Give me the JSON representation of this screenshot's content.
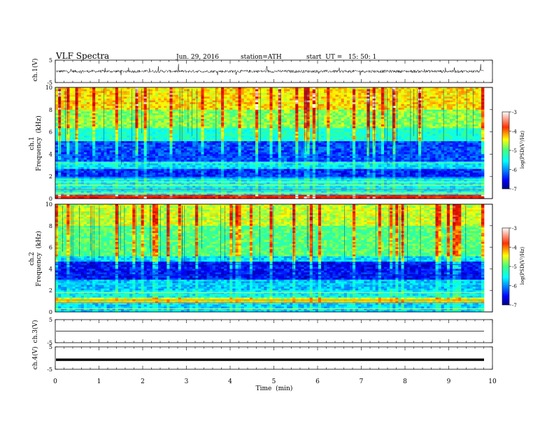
{
  "header": {
    "title": "VLF Spectra",
    "date": "Jun. 29, 2016",
    "station": "station=ATH",
    "start": "start  UT =   15: 50: 1"
  },
  "colorbar": {
    "label": "log(PSD(V²/Hz)",
    "ticks": [
      "-3",
      "-4",
      "-5",
      "-6",
      "-7"
    ]
  },
  "chart_data": [
    {
      "type": "line",
      "name": "ch1-waveform",
      "ylabel": "ch.1(V)",
      "ylim": [
        -5,
        5
      ],
      "yticks": [
        5,
        -5
      ],
      "description_values": {
        "baseline": 0,
        "noise_amplitude": 1.2,
        "spike_amplitude": 2.5
      }
    },
    {
      "type": "heatmap",
      "name": "ch1-spectrogram",
      "ylabel_top": "ch.1",
      "ylabel": "Frequency  (kHz)",
      "ylim": [
        0,
        10
      ],
      "yticks": [
        0,
        2,
        4,
        6,
        8,
        10
      ],
      "zlim": [
        -7,
        -3
      ],
      "zlabel": "log(PSD(V²/Hz)"
    },
    {
      "type": "heatmap",
      "name": "ch2-spectrogram",
      "ylabel_top": "ch.2",
      "ylabel": "Frequency  (kHz)",
      "ylim": [
        0,
        10
      ],
      "yticks": [
        0,
        2,
        4,
        6,
        8,
        10
      ],
      "zlim": [
        -7,
        -3
      ],
      "zlabel": "log(PSD(V²/Hz)"
    },
    {
      "type": "line",
      "name": "ch3-waveform",
      "ylabel": "ch.3(V)",
      "ylim": [
        -5,
        5
      ],
      "yticks": [
        5,
        -5
      ],
      "description_values": {
        "baseline": 0,
        "noise_amplitude": 0
      }
    },
    {
      "type": "line",
      "name": "ch4-waveform",
      "ylabel": "ch.4(V)",
      "ylim": [
        -5,
        5
      ],
      "yticks": [
        5,
        -5
      ],
      "description_values": {
        "baseline": -0.5,
        "noise_amplitude": 0.3
      }
    }
  ],
  "xaxis": {
    "label": "Time  (min)",
    "xlim": [
      0,
      10
    ],
    "ticks": [
      "0",
      "1",
      "2",
      "3",
      "4",
      "5",
      "6",
      "7",
      "8",
      "9",
      "10"
    ]
  }
}
